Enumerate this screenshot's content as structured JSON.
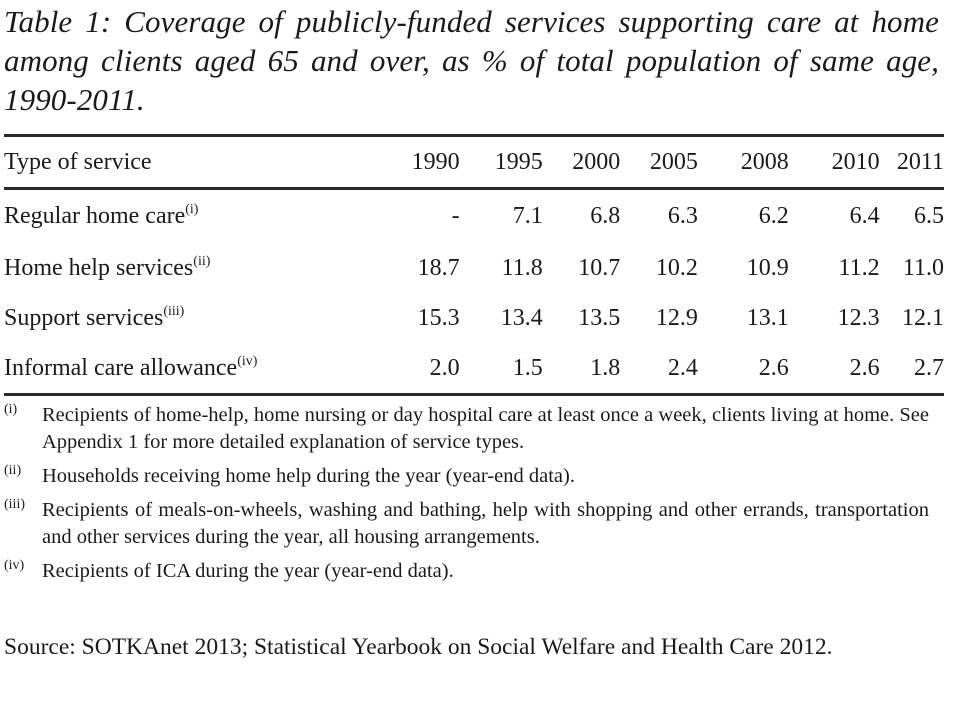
{
  "caption": "Table 1: Coverage of publicly-funded services supporting care at home among clients aged 65 and over, as % of total population of same age, 1990-2011.",
  "chart_data": {
    "type": "table",
    "title": "Table 1: Coverage of publicly-funded services supporting care at home among clients aged 65 and over, as % of total population of same age, 1990-2011.",
    "header": [
      "Type of service",
      "1990",
      "1995",
      "2000",
      "2005",
      "2008",
      "2010",
      "2011"
    ],
    "rows": [
      {
        "label": "Regular home care",
        "mark": "(i)",
        "values": [
          "-",
          "7.1",
          "6.8",
          "6.3",
          "6.2",
          "6.4",
          "6.5"
        ]
      },
      {
        "label": "Home help services",
        "mark": "(ii)",
        "values": [
          "18.7",
          "11.8",
          "10.7",
          "10.2",
          "10.9",
          "11.2",
          "11.0"
        ]
      },
      {
        "label": "Support services",
        "mark": "(iii)",
        "values": [
          "15.3",
          "13.4",
          "13.5",
          "12.9",
          "13.1",
          "12.3",
          "12.1"
        ]
      },
      {
        "label": "Informal care allowance",
        "mark": "(iv)",
        "values": [
          "2.0",
          "1.5",
          "1.8",
          "2.4",
          "2.6",
          "2.6",
          "2.7"
        ]
      }
    ]
  },
  "notes": [
    {
      "mark": "(i)",
      "text": "Recipients of home-help, home nursing or day hospital care at least once a week, clients living at home. See Appendix 1 for more detailed explanation of service types."
    },
    {
      "mark": "(ii)",
      "text": "Households receiving home help during the year (year-end data)."
    },
    {
      "mark": "(iii)",
      "text": "Recipients of meals-on-wheels, washing and bathing, help with shopping and other errands, transportation and other services during the year, all housing arrangements."
    },
    {
      "mark": "(iv)",
      "text": "Recipients of ICA during the year (year-end data)."
    }
  ],
  "source": "Source: SOTKAnet 2013; Statistical Yearbook on Social Welfare and Health Care 2012."
}
